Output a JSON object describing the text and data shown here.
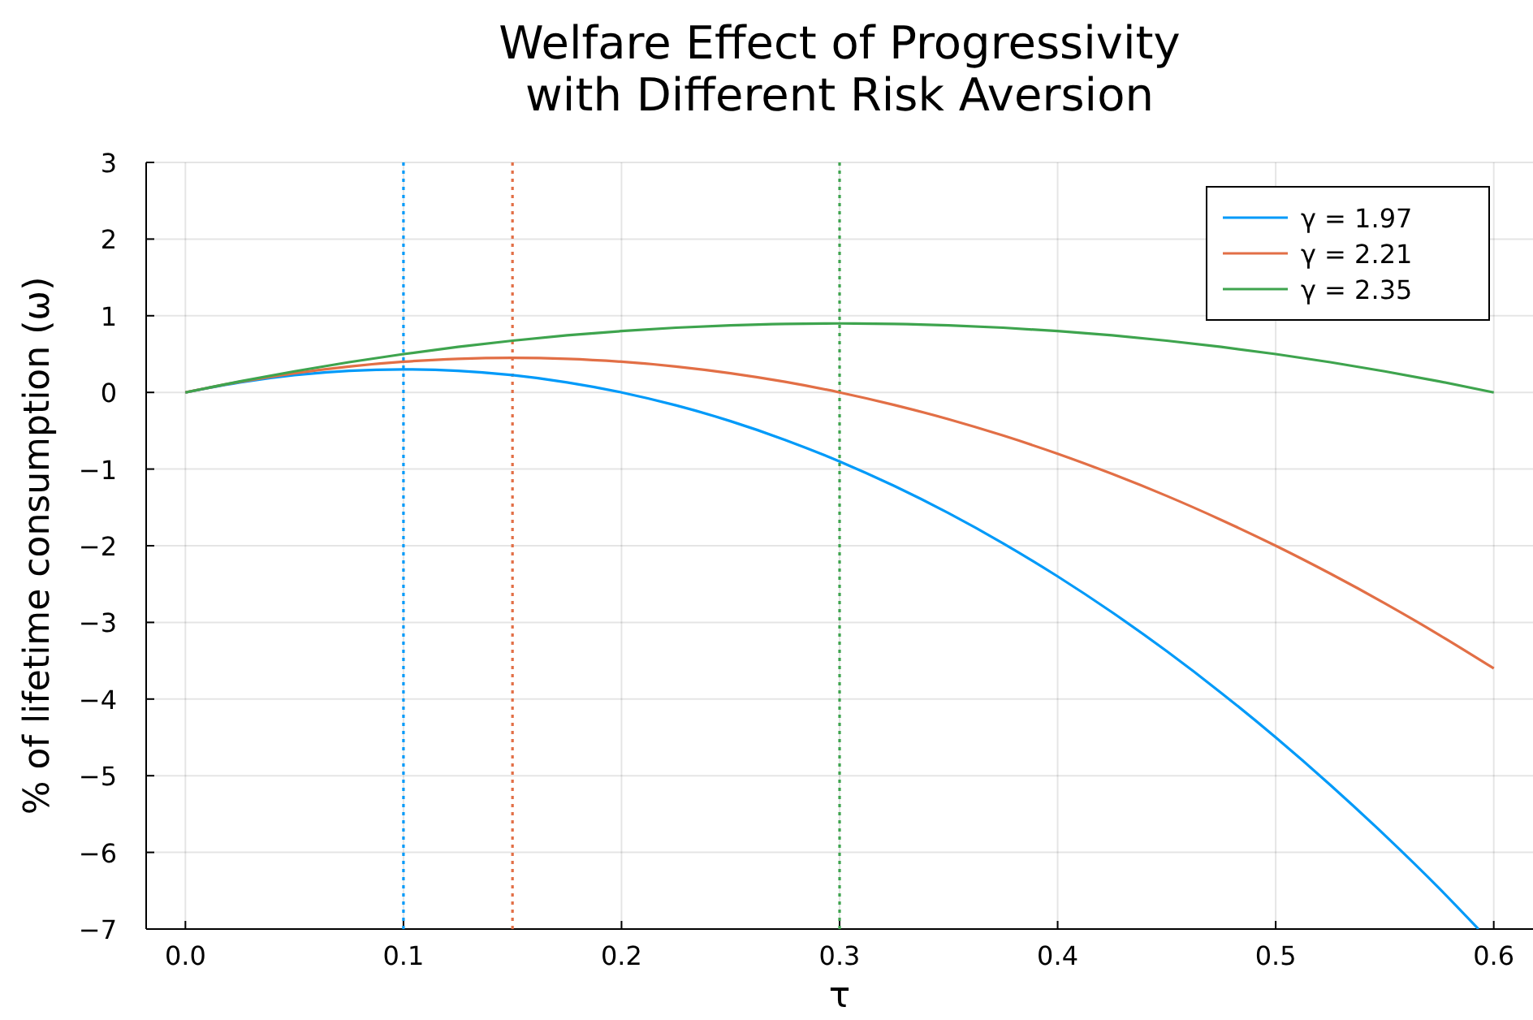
{
  "chart_data": {
    "type": "line",
    "title": "Welfare Effect of Progressivity\nwith Different Risk Aversion",
    "xlabel": "τ",
    "ylabel": "% of lifetime consumption (ω)",
    "x": [
      0,
      0.025,
      0.05,
      0.075,
      0.1,
      0.125,
      0.15,
      0.175,
      0.2,
      0.225,
      0.25,
      0.275,
      0.3,
      0.325,
      0.35,
      0.375,
      0.4,
      0.425,
      0.45,
      0.475,
      0.5,
      0.525,
      0.55,
      0.575,
      0.6
    ],
    "series": [
      {
        "name": "γ = 1.97",
        "color": "#009af9",
        "x": [
          0,
          0.025,
          0.05,
          0.075,
          0.1,
          0.125,
          0.15,
          0.175,
          0.2,
          0.225,
          0.25,
          0.275,
          0.3,
          0.325,
          0.35,
          0.375,
          0.4,
          0.425,
          0.45,
          0.475,
          0.5,
          0.525,
          0.55,
          0.575,
          0.593
        ],
        "values": [
          0,
          0.131,
          0.225,
          0.281,
          0.3,
          0.281,
          0.225,
          0.131,
          0,
          -0.169,
          -0.375,
          -0.619,
          -0.9,
          -1.219,
          -1.575,
          -1.969,
          -2.4,
          -2.869,
          -3.375,
          -3.919,
          -4.5,
          -5.119,
          -5.775,
          -6.469,
          -7
        ]
      },
      {
        "name": "γ = 2.21",
        "color": "#e26f46",
        "values": [
          0,
          0.138,
          0.25,
          0.338,
          0.4,
          0.438,
          0.45,
          0.438,
          0.4,
          0.338,
          0.25,
          0.138,
          0,
          -0.163,
          -0.35,
          -0.563,
          -0.8,
          -1.063,
          -1.35,
          -1.663,
          -2,
          -2.363,
          -2.75,
          -3.163,
          -3.6
        ]
      },
      {
        "name": "γ = 2.35",
        "color": "#3ea44e",
        "values": [
          0,
          0.144,
          0.275,
          0.394,
          0.5,
          0.594,
          0.675,
          0.744,
          0.8,
          0.844,
          0.875,
          0.894,
          0.9,
          0.894,
          0.875,
          0.844,
          0.8,
          0.744,
          0.675,
          0.594,
          0.5,
          0.394,
          0.275,
          0.144,
          0
        ]
      }
    ],
    "ref_lines": [
      {
        "axis": "x",
        "value": 0.1,
        "color": "#009af9",
        "line_style": "dotted"
      },
      {
        "axis": "x",
        "value": 0.15,
        "color": "#e26f46",
        "line_style": "dotted"
      },
      {
        "axis": "x",
        "value": 0.3,
        "color": "#3ea44e",
        "line_style": "dotted"
      }
    ],
    "xlim": [
      -0.018,
      0.618
    ],
    "xticks": [
      {
        "value": 0,
        "label": "0.0"
      },
      0.1,
      0.2,
      0.3,
      0.4,
      0.5,
      0.6
    ],
    "ylim": [
      -7,
      3
    ],
    "yticks": [
      -7,
      -6,
      -5,
      -4,
      -3,
      -2,
      -1,
      0,
      1,
      2,
      3
    ],
    "grid": true,
    "legend": "top right",
    "line_style": "solid",
    "marker": "none"
  }
}
